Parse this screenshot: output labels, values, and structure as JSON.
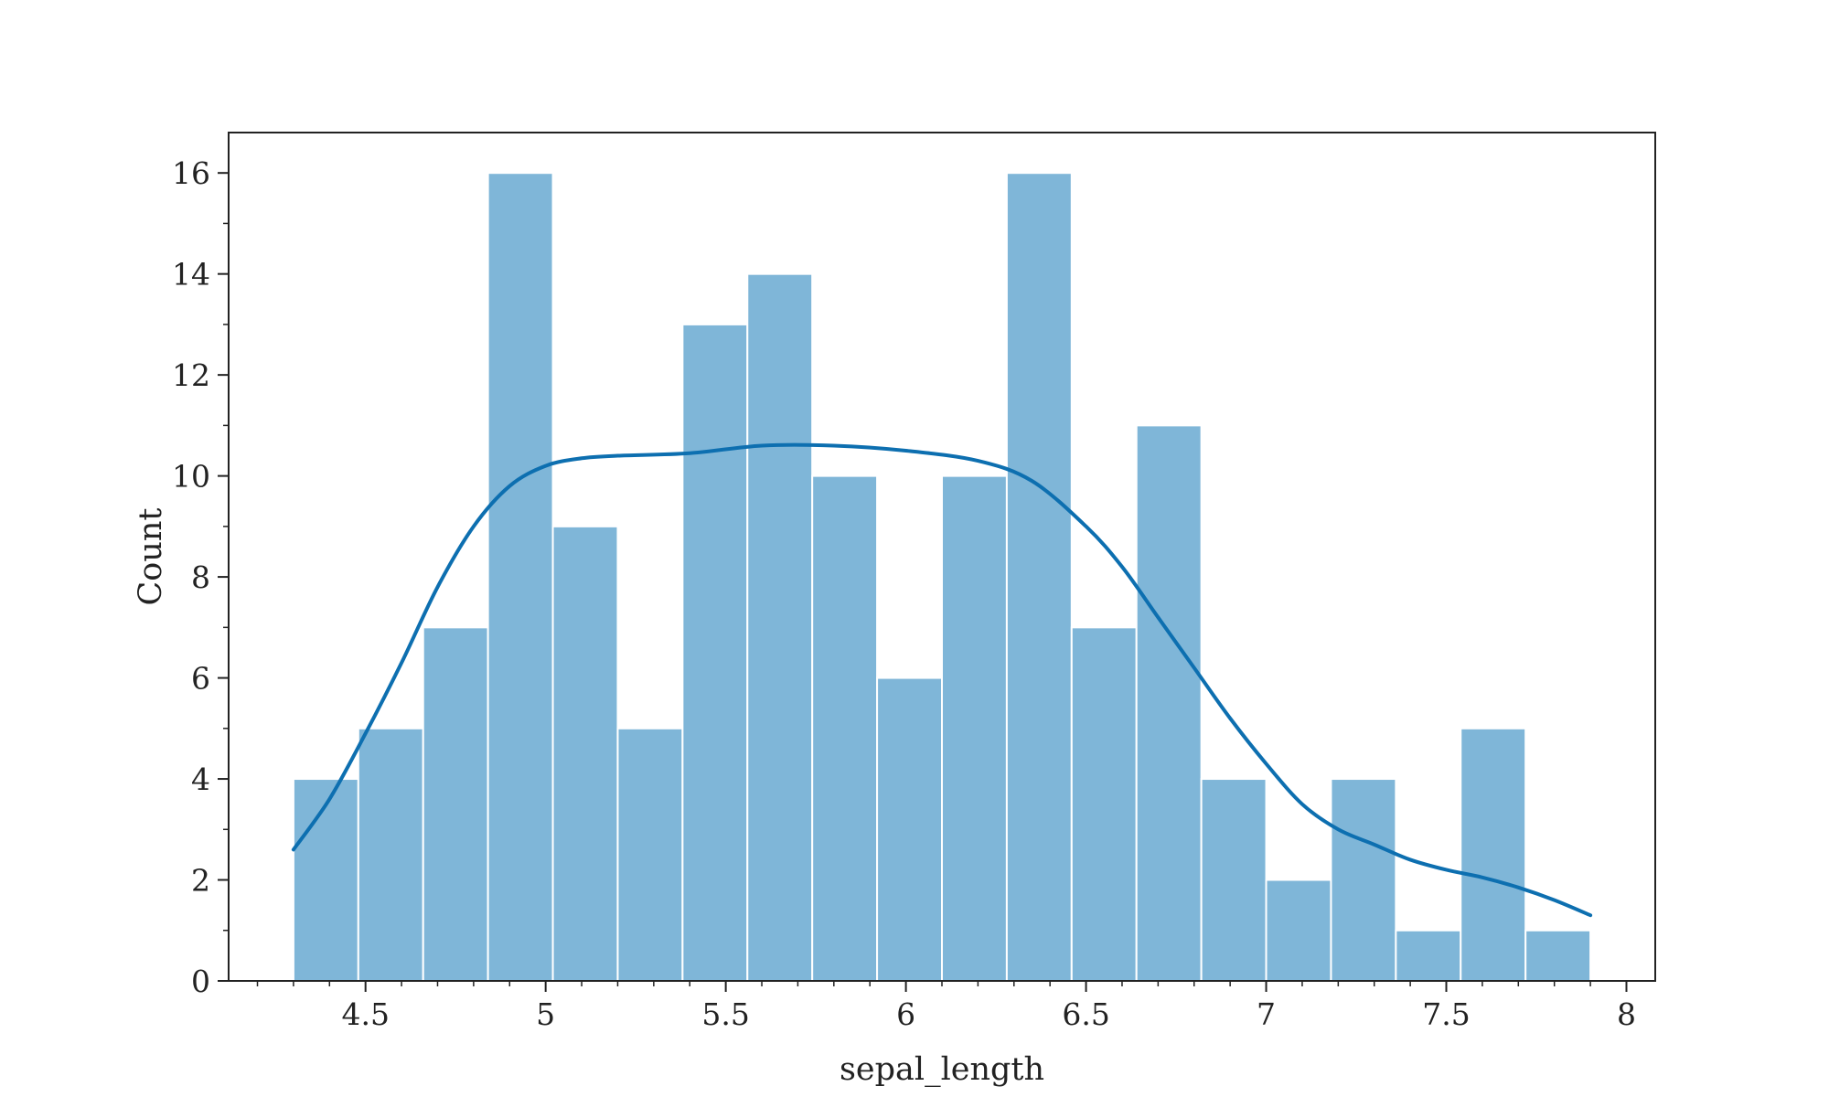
{
  "chart_data": {
    "type": "bar",
    "subtype": "histogram-with-kde",
    "xlabel": "sepal_length",
    "ylabel": "Count",
    "xlim": [
      4.12,
      8.08
    ],
    "ylim": [
      0,
      16.8
    ],
    "x_ticks": [
      4.5,
      5,
      5.5,
      6,
      6.5,
      7,
      7.5,
      8
    ],
    "x_tick_labels": [
      "4.5",
      "5",
      "5.5",
      "6",
      "6.5",
      "7",
      "7.5",
      "8"
    ],
    "y_ticks": [
      0,
      2,
      4,
      6,
      8,
      10,
      12,
      14,
      16
    ],
    "y_tick_labels": [
      "0",
      "2",
      "4",
      "6",
      "8",
      "10",
      "12",
      "14",
      "16"
    ],
    "grid": false,
    "bin_edges": [
      4.3,
      4.48,
      4.66,
      4.84,
      5.02,
      5.2,
      5.38,
      5.56,
      5.74,
      5.92,
      6.1,
      6.28,
      6.46,
      6.64,
      6.82,
      7.0,
      7.18,
      7.36,
      7.54,
      7.72,
      7.9
    ],
    "values": [
      4,
      5,
      7,
      16,
      9,
      5,
      13,
      14,
      10,
      6,
      10,
      16,
      7,
      11,
      4,
      2,
      4,
      1,
      5,
      1
    ],
    "kde": {
      "x": [
        4.3,
        4.4,
        4.5,
        4.6,
        4.7,
        4.8,
        4.9,
        5.0,
        5.1,
        5.2,
        5.4,
        5.6,
        5.8,
        6.0,
        6.2,
        6.35,
        6.5,
        6.6,
        6.7,
        6.8,
        6.9,
        7.0,
        7.1,
        7.2,
        7.3,
        7.4,
        7.5,
        7.6,
        7.7,
        7.8,
        7.9
      ],
      "y": [
        2.6,
        3.6,
        4.9,
        6.3,
        7.8,
        9.0,
        9.8,
        10.2,
        10.35,
        10.4,
        10.45,
        10.6,
        10.6,
        10.5,
        10.3,
        9.9,
        9.0,
        8.2,
        7.2,
        6.2,
        5.2,
        4.3,
        3.5,
        3.0,
        2.7,
        2.4,
        2.2,
        2.05,
        1.85,
        1.6,
        1.3
      ]
    },
    "colors": {
      "bar_fill": "#7fb6d8",
      "bar_edge": "#ffffff",
      "kde_line": "#0d6fb0",
      "axis": "#222222"
    }
  }
}
